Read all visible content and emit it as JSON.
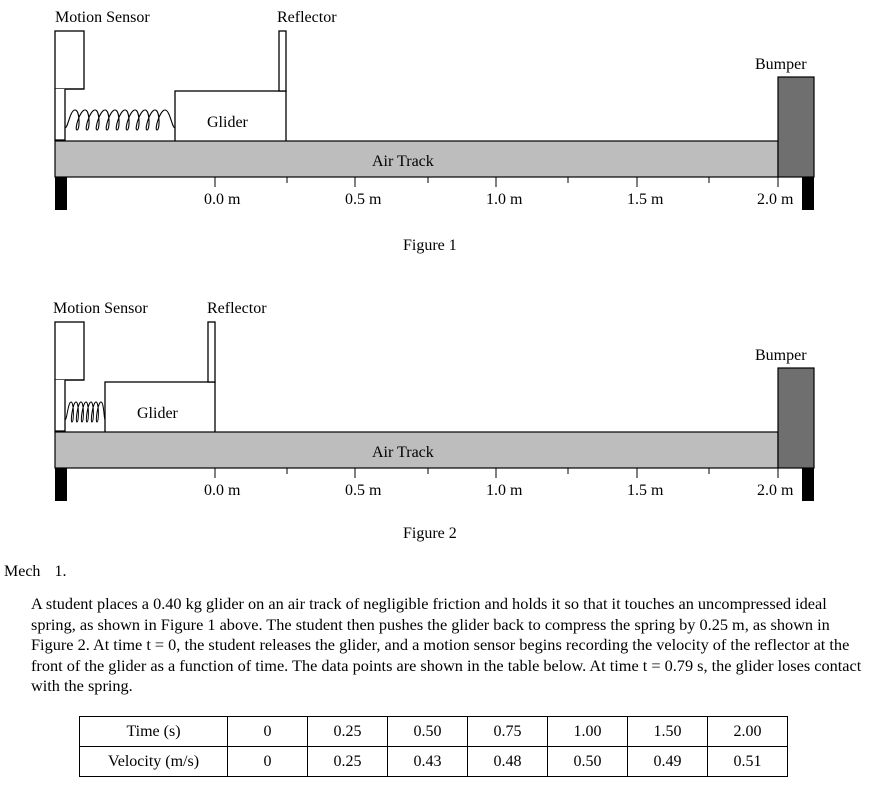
{
  "figure1": {
    "motion_sensor_label": "Motion Sensor",
    "reflector_label": "Reflector",
    "bumper_label": "Bumper",
    "glider_label": "Glider",
    "air_track_label": "Air Track",
    "tick_labels": [
      "0.0 m",
      "0.5 m",
      "1.0 m",
      "1.5 m",
      "2.0 m"
    ],
    "caption": "Figure 1"
  },
  "figure2": {
    "motion_sensor_label": "Motion Sensor",
    "reflector_label": "Reflector",
    "bumper_label": "Bumper",
    "glider_label": "Glider",
    "air_track_label": "Air Track",
    "tick_labels": [
      "0.0 m",
      "0.5 m",
      "1.0 m",
      "1.5 m",
      "2.0 m"
    ],
    "caption": "Figure 2"
  },
  "problem": {
    "section": "Mech",
    "number": "1.",
    "text": "A student places a 0.40 kg glider on an air track of negligible friction and holds it so that it touches an uncompressed ideal spring, as shown in Figure 1 above. The student then pushes the glider back to compress the spring by 0.25 m, as shown in Figure 2. At time t = 0, the student releases the glider, and a motion sensor begins recording the velocity of the reflector at the front of the glider as a function of time. The data points are shown in the table below. At time t = 0.79 s, the glider loses contact with the spring."
  },
  "table": {
    "row1_header": "Time (s)",
    "row1": [
      "0",
      "0.25",
      "0.50",
      "0.75",
      "1.00",
      "1.50",
      "2.00"
    ],
    "row2_header": "Velocity (m/s)",
    "row2": [
      "0",
      "0.25",
      "0.43",
      "0.48",
      "0.50",
      "0.49",
      "0.51"
    ]
  }
}
